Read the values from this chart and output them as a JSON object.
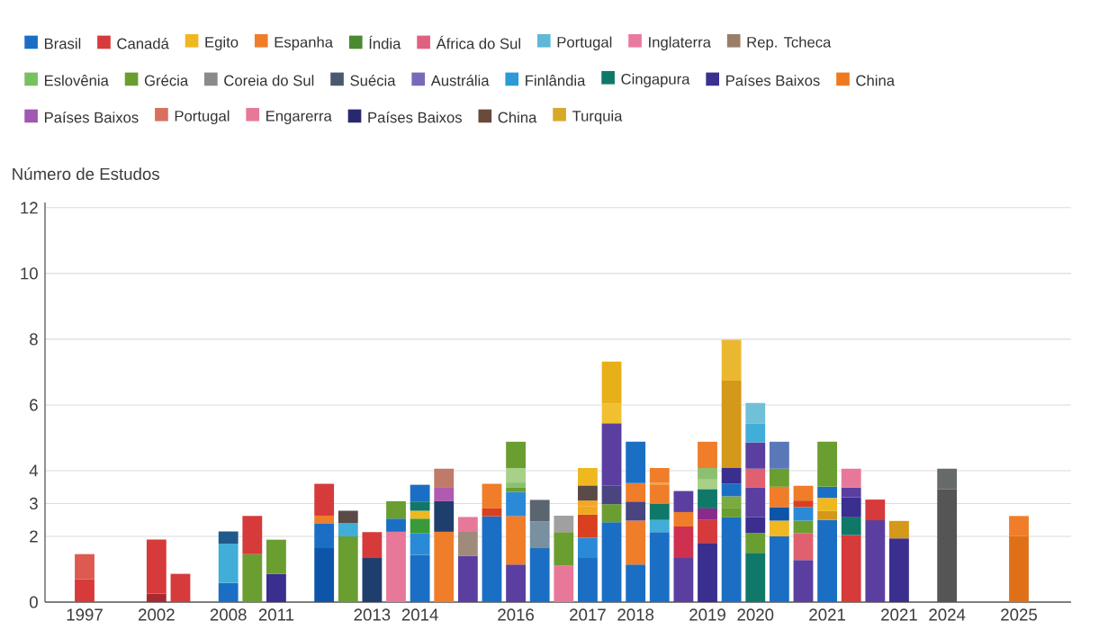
{
  "chart_data": {
    "type": "bar",
    "stacked": true,
    "ylabel": "Número de Estudos",
    "grid": "y",
    "legend": "top",
    "categories": [
      "1997",
      null,
      null,
      "2002",
      null,
      null,
      "2008",
      null,
      "2011",
      null,
      null,
      null,
      "2013",
      null,
      "2014",
      null,
      null,
      null,
      "2016",
      null,
      null,
      "2017",
      null,
      "2018",
      null,
      null,
      "2019",
      null,
      "2020",
      null,
      null,
      "2021",
      null,
      null,
      "2021",
      null,
      "2024",
      null,
      null,
      "2025"
    ],
    "ylim": [
      0,
      12.16
    ],
    "yticks": [
      0,
      2,
      3,
      4,
      6,
      8,
      10,
      12
    ],
    "series": [
      {
        "values": [
          0.7,
          null,
          null,
          0.26,
          0.86,
          null,
          0.58,
          1.46,
          0.86,
          null,
          1.64,
          2.0,
          1.34,
          2.14,
          1.44,
          2.14,
          1.4,
          2.61,
          1.14,
          1.64,
          1.12,
          1.34,
          2.43,
          1.14,
          2.13,
          1.34,
          1.8,
          2.58,
          1.5,
          2.0,
          1.28,
          2.5,
          2.04,
          2.49,
          1.94,
          null,
          3.43,
          null,
          null,
          2.01
        ],
        "colors": [
          "#d63a3a",
          null,
          null,
          "#a82a30",
          "#d63a3a",
          null,
          "#1a6fc4",
          "#6a9e30",
          "#3a2e8f",
          null,
          "#0d55a8",
          "#6a9e30",
          "#1e3f6e",
          "#e8789a",
          "#1a6fc4",
          "#f07d2a",
          "#5a3fa0",
          "#1a6fc4",
          "#5a3fa0",
          "#1a6fc4",
          "#e8789a",
          "#1a6fc4",
          "#1a6fc4",
          "#1a6fc4",
          "#1a6fc4",
          "#5a3fa0",
          "#3a2e8f",
          "#1a6fc4",
          "#107868",
          "#1a6fc4",
          "#5a3fa0",
          "#1a6fc4",
          "#d63a3a",
          "#5a3fa0",
          "#3a2e8f",
          null,
          "#555555",
          null,
          null,
          "#e07018"
        ]
      },
      {
        "values": [
          0.76,
          null,
          null,
          1.64,
          null,
          null,
          1.2,
          1.16,
          1.04,
          null,
          0.76,
          0.4,
          0.79,
          0.4,
          0.65,
          0.93,
          0.76,
          0.24,
          1.48,
          0.82,
          1.01,
          0.62,
          0.55,
          1.34,
          0.37,
          0.96,
          0.7,
          0.29,
          0.6,
          0.48,
          0.82,
          0.27,
          0.54,
          0.63,
          0.53,
          null,
          0.63,
          null,
          null,
          0.61
        ],
        "colors": [
          "#dc5a50",
          null,
          null,
          "#d63a3a",
          null,
          null,
          "#40aed8",
          "#d63a3a",
          "#6a9e30",
          null,
          "#1a6fc4",
          "#40aed8",
          "#d63a3a",
          "#1a6fc4",
          "#2a8ad8",
          "#1e3f6e",
          "#a08a7a",
          "#d84020",
          "#f07d2a",
          "#7890a0",
          "#6a9e30",
          "#2a8ad8",
          "#6a9e30",
          "#f07d2a",
          "#40aed8",
          "#d03050",
          "#d63a3a",
          "#6a9e30",
          "#6a9e30",
          "#f0b820",
          "#e06070",
          "#d4981a",
          "#107868",
          "#d63a3a",
          "#d4981a",
          null,
          "#666a6a",
          null,
          null,
          "#f07d2a"
        ]
      },
      {
        "values": [
          null,
          null,
          null,
          null,
          null,
          null,
          0.37,
          null,
          null,
          null,
          0.23,
          0.38,
          null,
          0.53,
          0.45,
          0.41,
          0.43,
          0.75,
          0.73,
          0.65,
          0.5,
          0.7,
          0.56,
          0.58,
          0.5,
          0.44,
          0.35,
          0.35,
          0.49,
          0.41,
          0.38,
          0.4,
          0.61,
          null,
          null,
          null,
          null,
          null,
          null,
          null
        ],
        "colors": [
          null,
          null,
          null,
          null,
          null,
          null,
          "#1f5a8a",
          null,
          null,
          null,
          "#f07d2a",
          "#5a4a48",
          null,
          "#6a9e30",
          "#3a9a3a",
          "#b05ab0",
          "#e8789a",
          "#f07d2a",
          "#2a8ad8",
          "#5a6570",
          "#a0a0a0",
          "#d84020",
          "#4a4480",
          "#4a4480",
          "#107868",
          "#f07d2a",
          "#8a2a8a",
          "#7aaa40",
          "#3a2e8f",
          "#0d55a8",
          "#6a9e30",
          "#f0b820",
          "#3a2e8f",
          null,
          null,
          null,
          null,
          null,
          null,
          null
        ]
      },
      {
        "values": [
          null,
          null,
          null,
          null,
          null,
          null,
          null,
          null,
          null,
          null,
          0.97,
          null,
          null,
          null,
          0.24,
          0.58,
          null,
          null,
          0.13,
          null,
          null,
          0.25,
          1.9,
          0.56,
          0.56,
          0.64,
          0.59,
          0.38,
          0.89,
          0.62,
          0.41,
          0.34,
          0.3,
          null,
          null,
          null,
          null,
          null,
          null,
          null
        ],
        "colors": [
          null,
          null,
          null,
          null,
          null,
          null,
          null,
          null,
          null,
          null,
          "#d63a3a",
          null,
          null,
          null,
          "#f0b820",
          "#c07a6a",
          null,
          null,
          "#6a9e30",
          null,
          null,
          "#f0a820",
          "#5a3fa0",
          "#f07d2a",
          "#f07d2a",
          "#5a3fa0",
          "#107868",
          "#1a6fc4",
          "#5a3fa0",
          "#f07d2a",
          "#2a8ad8",
          "#1a6fc4",
          "#5a3fa0",
          null,
          null,
          null,
          null,
          null,
          null,
          null
        ]
      },
      {
        "values": [
          null,
          null,
          null,
          null,
          null,
          null,
          null,
          null,
          null,
          null,
          null,
          null,
          null,
          null,
          0.28,
          null,
          null,
          null,
          0.16,
          null,
          null,
          0.18,
          0.6,
          1.26,
          0.07,
          null,
          0.29,
          0.48,
          0.58,
          0.55,
          0.2,
          1.37,
          0.57,
          null,
          null,
          null,
          null,
          null,
          null,
          null
        ],
        "colors": [
          null,
          null,
          null,
          null,
          null,
          null,
          null,
          null,
          null,
          null,
          null,
          null,
          null,
          null,
          "#107868",
          null,
          null,
          null,
          "#8cc070",
          null,
          null,
          "#f5a623",
          "#f0c030",
          "#1a6fc4",
          "#f8a040",
          null,
          "#a8d088",
          "#3a2e8f",
          "#e06070",
          "#6a9e30",
          "#d84020",
          "#6a9e30",
          "#e8789a",
          null,
          null,
          null,
          null,
          null,
          null,
          null
        ]
      },
      {
        "values": [
          null,
          null,
          null,
          null,
          null,
          null,
          null,
          null,
          null,
          null,
          null,
          null,
          null,
          null,
          0.51,
          null,
          null,
          null,
          0.44,
          null,
          null,
          0.46,
          1.28,
          null,
          0.45,
          null,
          0.35,
          2.66,
          0.8,
          0.82,
          0.45,
          null,
          null,
          null,
          null,
          null,
          null,
          null,
          null,
          null
        ],
        "colors": [
          null,
          null,
          null,
          null,
          null,
          null,
          null,
          null,
          null,
          null,
          null,
          null,
          null,
          null,
          "#1a6fc4",
          null,
          null,
          null,
          "#a8d088",
          null,
          null,
          "#5a4a48",
          "#e8b018",
          null,
          "#f07d2a",
          null,
          "#8cc070",
          "#d4981a",
          "#5a3fa0",
          "#5a78b8",
          "#f07d2a",
          null,
          null,
          null,
          null,
          null,
          null,
          null,
          null,
          null
        ]
      },
      {
        "values": [
          null,
          null,
          null,
          null,
          null,
          null,
          null,
          null,
          null,
          null,
          null,
          null,
          null,
          null,
          null,
          null,
          null,
          null,
          0.8,
          null,
          null,
          0.53,
          null,
          null,
          null,
          null,
          0.8,
          1.24,
          0.58,
          null,
          null,
          null,
          null,
          null,
          null,
          null,
          null,
          null,
          null,
          null
        ],
        "colors": [
          null,
          null,
          null,
          null,
          null,
          null,
          null,
          null,
          null,
          null,
          null,
          null,
          null,
          null,
          null,
          null,
          null,
          null,
          "#6a9e30",
          null,
          null,
          "#f0b820",
          null,
          null,
          null,
          null,
          "#f07d2a",
          "#eab830",
          "#40aed8",
          null,
          null,
          null,
          null,
          null,
          null,
          null,
          null,
          null,
          null,
          null
        ]
      },
      {
        "values": [
          null,
          null,
          null,
          null,
          null,
          null,
          null,
          null,
          null,
          null,
          null,
          null,
          null,
          null,
          null,
          null,
          null,
          null,
          null,
          null,
          null,
          null,
          null,
          null,
          null,
          null,
          null,
          null,
          0.62,
          null,
          null,
          null,
          null,
          null,
          null,
          null,
          null,
          null,
          null,
          null
        ],
        "colors": [
          null,
          null,
          null,
          null,
          null,
          null,
          null,
          null,
          null,
          null,
          null,
          null,
          null,
          null,
          null,
          null,
          null,
          null,
          null,
          null,
          null,
          null,
          null,
          null,
          null,
          null,
          null,
          null,
          "#70c0d8",
          null,
          null,
          null,
          null,
          null,
          null,
          null,
          null,
          null,
          null,
          null
        ]
      },
      {
        "name": "Brasil",
        "color": "#1a6fc4",
        "values": [
          null,
          null,
          null,
          null,
          null,
          null,
          null,
          null,
          null,
          null,
          null,
          null,
          null,
          null,
          null,
          null,
          null,
          null,
          null,
          null,
          null,
          null,
          null,
          null,
          null,
          null,
          null,
          null,
          null,
          null,
          null,
          null,
          null,
          null,
          null,
          null,
          null,
          null,
          null,
          null
        ]
      },
      {
        "name": "Canadá",
        "color": "#d63a3a",
        "values": [
          null,
          null,
          null,
          null,
          null,
          null,
          null,
          null,
          null,
          null,
          null,
          null,
          null,
          null,
          null,
          null,
          null,
          null,
          null,
          null,
          null,
          null,
          null,
          null,
          null,
          null,
          null,
          null,
          null,
          null,
          null,
          null,
          null,
          null,
          null,
          null,
          null,
          null,
          null,
          null
        ]
      },
      {
        "name": "Egito",
        "color": "#f0b820",
        "values": [
          null,
          null,
          null,
          null,
          null,
          null,
          null,
          null,
          null,
          null,
          null,
          null,
          null,
          null,
          null,
          null,
          null,
          null,
          null,
          null,
          null,
          null,
          null,
          null,
          null,
          null,
          null,
          null,
          null,
          null,
          null,
          null,
          null,
          null,
          null,
          null,
          null,
          null,
          null,
          null
        ]
      },
      {
        "name": "Espanha",
        "color": "#f07d2a",
        "values": [
          null,
          null,
          null,
          null,
          null,
          null,
          null,
          null,
          null,
          null,
          null,
          null,
          null,
          null,
          null,
          null,
          null,
          null,
          null,
          null,
          null,
          null,
          null,
          null,
          null,
          null,
          null,
          null,
          null,
          null,
          null,
          null,
          null,
          null,
          null,
          null,
          null,
          null,
          null,
          null
        ]
      },
      {
        "name": "Índia",
        "color": "#4a8a30",
        "values": [
          null,
          null,
          null,
          null,
          null,
          null,
          null,
          null,
          null,
          null,
          null,
          null,
          null,
          null,
          null,
          null,
          null,
          null,
          null,
          null,
          null,
          null,
          null,
          null,
          null,
          null,
          null,
          null,
          null,
          null,
          null,
          null,
          null,
          null,
          null,
          null,
          null,
          null,
          null,
          null
        ]
      },
      {
        "name": "África do Sul",
        "color": "#e06080",
        "values": [
          null,
          null,
          null,
          null,
          null,
          null,
          null,
          null,
          null,
          null,
          null,
          null,
          null,
          null,
          null,
          null,
          null,
          null,
          null,
          null,
          null,
          null,
          null,
          null,
          null,
          null,
          null,
          null,
          null,
          null,
          null,
          null,
          null,
          null,
          null,
          null,
          null,
          null,
          null,
          null
        ]
      },
      {
        "name": "Portugal",
        "color": "#60b8d8",
        "values": [
          null,
          null,
          null,
          null,
          null,
          null,
          null,
          null,
          null,
          null,
          null,
          null,
          null,
          null,
          null,
          null,
          null,
          null,
          null,
          null,
          null,
          null,
          null,
          null,
          null,
          null,
          null,
          null,
          null,
          null,
          null,
          null,
          null,
          null,
          null,
          null,
          null,
          null,
          null,
          null
        ]
      },
      {
        "name": "Inglaterra",
        "color": "#e87aa0",
        "values": [
          null,
          null,
          null,
          null,
          null,
          null,
          null,
          null,
          null,
          null,
          null,
          null,
          null,
          null,
          null,
          null,
          null,
          null,
          null,
          null,
          null,
          null,
          null,
          null,
          null,
          null,
          null,
          null,
          null,
          null,
          null,
          null,
          null,
          null,
          null,
          null,
          null,
          null,
          null,
          null
        ]
      },
      {
        "name": "Rep. Tcheca",
        "color": "#9a7e68",
        "values": [
          null,
          null,
          null,
          null,
          null,
          null,
          null,
          null,
          null,
          null,
          null,
          null,
          null,
          null,
          null,
          null,
          null,
          null,
          null,
          null,
          null,
          null,
          null,
          null,
          null,
          null,
          null,
          null,
          null,
          null,
          null,
          null,
          null,
          null,
          null,
          null,
          null,
          null,
          null,
          null
        ]
      },
      {
        "name": "Eslovênia",
        "color": "#78c060",
        "values": [
          null,
          null,
          null,
          null,
          null,
          null,
          null,
          null,
          null,
          null,
          null,
          null,
          null,
          null,
          null,
          null,
          null,
          null,
          null,
          null,
          null,
          null,
          null,
          null,
          null,
          null,
          null,
          null,
          null,
          null,
          null,
          null,
          null,
          null,
          null,
          null,
          null,
          null,
          null,
          null
        ]
      },
      {
        "name": "Grécia",
        "color": "#6a9e30",
        "values": [
          null,
          null,
          null,
          null,
          null,
          null,
          null,
          null,
          null,
          null,
          null,
          null,
          null,
          null,
          null,
          null,
          null,
          null,
          null,
          null,
          null,
          null,
          null,
          null,
          null,
          null,
          null,
          null,
          null,
          null,
          null,
          null,
          null,
          null,
          null,
          null,
          null,
          null,
          null,
          null
        ]
      },
      {
        "name": "Coreia do Sul",
        "color": "#8a8a8a",
        "values": [
          null,
          null,
          null,
          null,
          null,
          null,
          null,
          null,
          null,
          null,
          null,
          null,
          null,
          null,
          null,
          null,
          null,
          null,
          null,
          null,
          null,
          null,
          null,
          null,
          null,
          null,
          null,
          null,
          null,
          null,
          null,
          null,
          null,
          null,
          null,
          null,
          null,
          null,
          null,
          null
        ]
      },
      {
        "name": "Suécia",
        "color": "#4a5a6e",
        "values": [
          null,
          null,
          null,
          null,
          null,
          null,
          null,
          null,
          null,
          null,
          null,
          null,
          null,
          null,
          null,
          null,
          null,
          null,
          null,
          null,
          null,
          null,
          null,
          null,
          null,
          null,
          null,
          null,
          null,
          null,
          null,
          null,
          null,
          null,
          null,
          null,
          null,
          null,
          null,
          null
        ]
      },
      {
        "name": "Austrália",
        "color": "#7a68b8",
        "values": [
          null,
          null,
          null,
          null,
          null,
          null,
          null,
          null,
          null,
          null,
          null,
          null,
          null,
          null,
          null,
          null,
          null,
          null,
          null,
          null,
          null,
          null,
          null,
          null,
          null,
          null,
          null,
          null,
          null,
          null,
          null,
          null,
          null,
          null,
          null,
          null,
          null,
          null,
          null,
          null
        ]
      },
      {
        "name": "Finlândia",
        "color": "#2a9ad8",
        "values": [
          null,
          null,
          null,
          null,
          null,
          null,
          null,
          null,
          null,
          null,
          null,
          null,
          null,
          null,
          null,
          null,
          null,
          null,
          null,
          null,
          null,
          null,
          null,
          null,
          null,
          null,
          null,
          null,
          null,
          null,
          null,
          null,
          null,
          null,
          null,
          null,
          null,
          null,
          null,
          null
        ]
      },
      {
        "name": "Cingapura",
        "color": "#107868",
        "values": [
          null,
          null,
          null,
          null,
          null,
          null,
          null,
          null,
          null,
          null,
          null,
          null,
          null,
          null,
          null,
          null,
          null,
          null,
          null,
          null,
          null,
          null,
          null,
          null,
          null,
          null,
          null,
          null,
          null,
          null,
          null,
          null,
          null,
          null,
          null,
          null,
          null,
          null,
          null,
          null
        ]
      },
      {
        "name": "Países Baixos",
        "color": "#3a3090",
        "values": [
          null,
          null,
          null,
          null,
          null,
          null,
          null,
          null,
          null,
          null,
          null,
          null,
          null,
          null,
          null,
          null,
          null,
          null,
          null,
          null,
          null,
          null,
          null,
          null,
          null,
          null,
          null,
          null,
          null,
          null,
          null,
          null,
          null,
          null,
          null,
          null,
          null,
          null,
          null,
          null
        ]
      },
      {
        "name": "China",
        "color": "#f07820",
        "values": [
          null,
          null,
          null,
          null,
          null,
          null,
          null,
          null,
          null,
          null,
          null,
          null,
          null,
          null,
          null,
          null,
          null,
          null,
          null,
          null,
          null,
          null,
          null,
          null,
          null,
          null,
          null,
          null,
          null,
          null,
          null,
          null,
          null,
          null,
          null,
          null,
          null,
          null,
          null,
          null
        ]
      },
      {
        "name": "Países Baixos",
        "color": "#a058b0",
        "values": [
          null,
          null,
          null,
          null,
          null,
          null,
          null,
          null,
          null,
          null,
          null,
          null,
          null,
          null,
          null,
          null,
          null,
          null,
          null,
          null,
          null,
          null,
          null,
          null,
          null,
          null,
          null,
          null,
          null,
          null,
          null,
          null,
          null,
          null,
          null,
          null,
          null,
          null,
          null,
          null
        ]
      },
      {
        "name": "Portugal",
        "color": "#d87060",
        "values": [
          null,
          null,
          null,
          null,
          null,
          null,
          null,
          null,
          null,
          null,
          null,
          null,
          null,
          null,
          null,
          null,
          null,
          null,
          null,
          null,
          null,
          null,
          null,
          null,
          null,
          null,
          null,
          null,
          null,
          null,
          null,
          null,
          null,
          null,
          null,
          null,
          null,
          null,
          null,
          null
        ]
      },
      {
        "name": "Engarerra",
        "color": "#e87898",
        "values": [
          null,
          null,
          null,
          null,
          null,
          null,
          null,
          null,
          null,
          null,
          null,
          null,
          null,
          null,
          null,
          null,
          null,
          null,
          null,
          null,
          null,
          null,
          null,
          null,
          null,
          null,
          null,
          null,
          null,
          null,
          null,
          null,
          null,
          null,
          null,
          null,
          null,
          null,
          null,
          null
        ]
      },
      {
        "name": "Países Baixos",
        "color": "#28286e",
        "values": [
          null,
          null,
          null,
          null,
          null,
          null,
          null,
          null,
          null,
          null,
          null,
          null,
          null,
          null,
          null,
          null,
          null,
          null,
          null,
          null,
          null,
          null,
          null,
          null,
          null,
          null,
          null,
          null,
          null,
          null,
          null,
          null,
          null,
          null,
          null,
          null,
          null,
          null,
          null,
          null
        ]
      },
      {
        "name": "China",
        "color": "#6a4a3a",
        "values": [
          null,
          null,
          null,
          null,
          null,
          null,
          null,
          null,
          null,
          null,
          null,
          null,
          null,
          null,
          null,
          null,
          null,
          null,
          null,
          null,
          null,
          null,
          null,
          null,
          null,
          null,
          null,
          null,
          null,
          null,
          null,
          null,
          null,
          null,
          null,
          null,
          null,
          null,
          null,
          null
        ]
      },
      {
        "name": "Turquia",
        "color": "#d8a828",
        "values": [
          null,
          null,
          null,
          null,
          null,
          null,
          null,
          null,
          null,
          null,
          null,
          null,
          null,
          null,
          null,
          null,
          null,
          null,
          null,
          null,
          null,
          null,
          null,
          null,
          null,
          null,
          null,
          null,
          null,
          null,
          null,
          null,
          null,
          null,
          null,
          null,
          null,
          null,
          null,
          null
        ]
      }
    ]
  }
}
